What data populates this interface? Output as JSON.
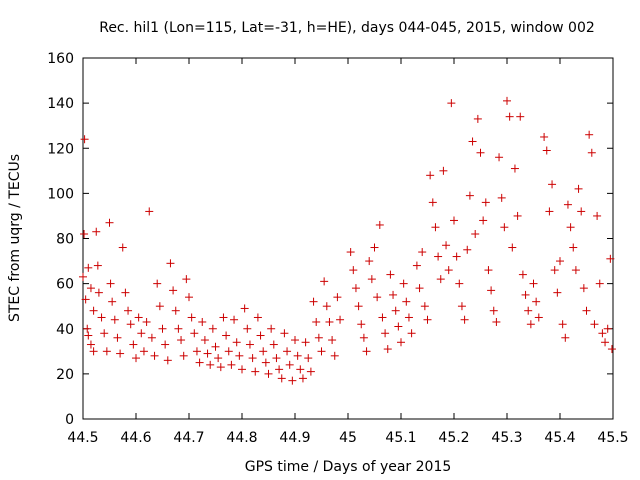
{
  "chart_data": {
    "type": "scatter",
    "title": "Rec. hil1 (Lon=115, Lat=-31, h=HE), days 044-045, 2015, window 002",
    "xlabel": "GPS time / Days of year 2015",
    "ylabel": "STEC from uqrg / TECUs",
    "xlim": [
      44.5,
      45.5
    ],
    "ylim": [
      0,
      160
    ],
    "x_ticks": [
      "44.5",
      "44.6",
      "44.7",
      "44.8",
      "44.9",
      "45",
      "45.1",
      "45.2",
      "45.3",
      "45.4",
      "45.5"
    ],
    "y_ticks": [
      "0",
      "20",
      "40",
      "60",
      "80",
      "100",
      "120",
      "140",
      "160"
    ],
    "grid": false,
    "marker": "plus",
    "color": "#cc0000",
    "points": [
      [
        44.503,
        124
      ],
      [
        44.502,
        82
      ],
      [
        44.5,
        63
      ],
      [
        44.505,
        53
      ],
      [
        44.51,
        67
      ],
      [
        44.515,
        58
      ],
      [
        44.52,
        48
      ],
      [
        44.508,
        40
      ],
      [
        44.51,
        37
      ],
      [
        44.515,
        33
      ],
      [
        44.52,
        30
      ],
      [
        44.525,
        83
      ],
      [
        44.528,
        68
      ],
      [
        44.53,
        56
      ],
      [
        44.535,
        45
      ],
      [
        44.54,
        38
      ],
      [
        44.545,
        30
      ],
      [
        44.55,
        87
      ],
      [
        44.552,
        60
      ],
      [
        44.555,
        52
      ],
      [
        44.56,
        44
      ],
      [
        44.565,
        36
      ],
      [
        44.57,
        29
      ],
      [
        44.575,
        76
      ],
      [
        44.58,
        56
      ],
      [
        44.585,
        48
      ],
      [
        44.59,
        42
      ],
      [
        44.595,
        33
      ],
      [
        44.6,
        27
      ],
      [
        44.605,
        45
      ],
      [
        44.61,
        38
      ],
      [
        44.615,
        30
      ],
      [
        44.62,
        43
      ],
      [
        44.625,
        92
      ],
      [
        44.63,
        36
      ],
      [
        44.635,
        28
      ],
      [
        44.64,
        60
      ],
      [
        44.645,
        50
      ],
      [
        44.65,
        40
      ],
      [
        44.655,
        33
      ],
      [
        44.66,
        26
      ],
      [
        44.665,
        69
      ],
      [
        44.67,
        57
      ],
      [
        44.675,
        48
      ],
      [
        44.68,
        40
      ],
      [
        44.685,
        35
      ],
      [
        44.69,
        28
      ],
      [
        44.695,
        62
      ],
      [
        44.7,
        54
      ],
      [
        44.705,
        45
      ],
      [
        44.71,
        38
      ],
      [
        44.715,
        30
      ],
      [
        44.72,
        25
      ],
      [
        44.725,
        43
      ],
      [
        44.73,
        35
      ],
      [
        44.735,
        29
      ],
      [
        44.74,
        24
      ],
      [
        44.745,
        40
      ],
      [
        44.75,
        32
      ],
      [
        44.755,
        27
      ],
      [
        44.76,
        23
      ],
      [
        44.765,
        45
      ],
      [
        44.77,
        37
      ],
      [
        44.775,
        30
      ],
      [
        44.78,
        24
      ],
      [
        44.785,
        44
      ],
      [
        44.79,
        34
      ],
      [
        44.795,
        28
      ],
      [
        44.8,
        22
      ],
      [
        44.805,
        49
      ],
      [
        44.81,
        40
      ],
      [
        44.815,
        33
      ],
      [
        44.82,
        27
      ],
      [
        44.825,
        21
      ],
      [
        44.83,
        45
      ],
      [
        44.835,
        37
      ],
      [
        44.84,
        30
      ],
      [
        44.845,
        25
      ],
      [
        44.85,
        20
      ],
      [
        44.855,
        40
      ],
      [
        44.86,
        33
      ],
      [
        44.865,
        27
      ],
      [
        44.87,
        22
      ],
      [
        44.875,
        18
      ],
      [
        44.88,
        38
      ],
      [
        44.885,
        30
      ],
      [
        44.89,
        24
      ],
      [
        44.895,
        17
      ],
      [
        44.9,
        35
      ],
      [
        44.905,
        28
      ],
      [
        44.91,
        22
      ],
      [
        44.915,
        18
      ],
      [
        44.92,
        34
      ],
      [
        44.925,
        27
      ],
      [
        44.93,
        21
      ],
      [
        44.935,
        52
      ],
      [
        44.94,
        43
      ],
      [
        44.945,
        36
      ],
      [
        44.95,
        30
      ],
      [
        44.955,
        61
      ],
      [
        44.96,
        50
      ],
      [
        44.965,
        43
      ],
      [
        44.97,
        35
      ],
      [
        44.975,
        28
      ],
      [
        44.98,
        54
      ],
      [
        44.985,
        44
      ],
      [
        45.005,
        74
      ],
      [
        45.01,
        66
      ],
      [
        45.015,
        58
      ],
      [
        45.02,
        50
      ],
      [
        45.025,
        42
      ],
      [
        45.03,
        36
      ],
      [
        45.035,
        30
      ],
      [
        45.04,
        70
      ],
      [
        45.045,
        62
      ],
      [
        45.05,
        76
      ],
      [
        45.055,
        54
      ],
      [
        45.06,
        86
      ],
      [
        45.065,
        45
      ],
      [
        45.07,
        38
      ],
      [
        45.075,
        31
      ],
      [
        45.08,
        64
      ],
      [
        45.085,
        55
      ],
      [
        45.09,
        48
      ],
      [
        45.095,
        41
      ],
      [
        45.1,
        34
      ],
      [
        45.105,
        60
      ],
      [
        45.11,
        52
      ],
      [
        45.115,
        45
      ],
      [
        45.12,
        38
      ],
      [
        45.13,
        68
      ],
      [
        45.135,
        58
      ],
      [
        45.14,
        74
      ],
      [
        45.145,
        50
      ],
      [
        45.15,
        44
      ],
      [
        45.155,
        108
      ],
      [
        45.16,
        96
      ],
      [
        45.165,
        85
      ],
      [
        45.17,
        72
      ],
      [
        45.175,
        62
      ],
      [
        45.18,
        110
      ],
      [
        45.185,
        77
      ],
      [
        45.19,
        66
      ],
      [
        45.195,
        140
      ],
      [
        45.2,
        88
      ],
      [
        45.205,
        72
      ],
      [
        45.21,
        60
      ],
      [
        45.215,
        50
      ],
      [
        45.22,
        44
      ],
      [
        45.225,
        75
      ],
      [
        45.23,
        99
      ],
      [
        45.235,
        123
      ],
      [
        45.24,
        82
      ],
      [
        45.245,
        133
      ],
      [
        45.25,
        118
      ],
      [
        45.255,
        88
      ],
      [
        45.26,
        96
      ],
      [
        45.265,
        66
      ],
      [
        45.27,
        57
      ],
      [
        45.275,
        48
      ],
      [
        45.28,
        43
      ],
      [
        45.285,
        116
      ],
      [
        45.29,
        98
      ],
      [
        45.295,
        85
      ],
      [
        45.3,
        141
      ],
      [
        45.305,
        134
      ],
      [
        45.31,
        76
      ],
      [
        45.315,
        111
      ],
      [
        45.32,
        90
      ],
      [
        45.325,
        134
      ],
      [
        45.33,
        64
      ],
      [
        45.335,
        55
      ],
      [
        45.34,
        48
      ],
      [
        45.345,
        42
      ],
      [
        45.35,
        60
      ],
      [
        45.355,
        52
      ],
      [
        45.36,
        45
      ],
      [
        45.37,
        125
      ],
      [
        45.375,
        119
      ],
      [
        45.38,
        92
      ],
      [
        45.385,
        104
      ],
      [
        45.39,
        66
      ],
      [
        45.395,
        56
      ],
      [
        45.4,
        70
      ],
      [
        45.405,
        42
      ],
      [
        45.41,
        36
      ],
      [
        45.415,
        95
      ],
      [
        45.42,
        85
      ],
      [
        45.425,
        76
      ],
      [
        45.43,
        66
      ],
      [
        45.435,
        102
      ],
      [
        45.44,
        92
      ],
      [
        45.445,
        58
      ],
      [
        45.45,
        48
      ],
      [
        45.455,
        126
      ],
      [
        45.46,
        118
      ],
      [
        45.465,
        42
      ],
      [
        45.47,
        90
      ],
      [
        45.475,
        60
      ],
      [
        45.48,
        38
      ],
      [
        45.485,
        34
      ],
      [
        45.49,
        40
      ],
      [
        45.495,
        71
      ],
      [
        45.498,
        31
      ]
    ]
  }
}
